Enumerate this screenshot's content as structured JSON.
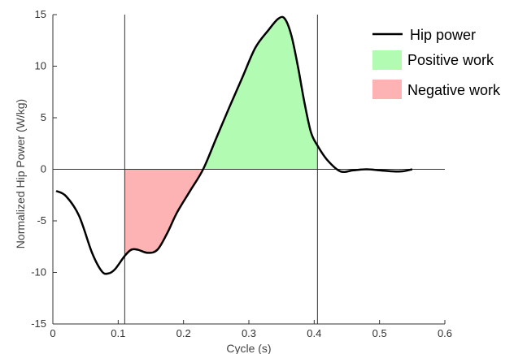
{
  "chart_data": {
    "type": "line",
    "xlabel": "Cycle (s)",
    "ylabel": "Normalized Hip Power (W/kg)",
    "xlim": [
      0,
      0.6
    ],
    "ylim": [
      -15,
      15
    ],
    "xticks": [
      "0",
      "0.1",
      "0.2",
      "0.3",
      "0.4",
      "0.5",
      "0.6"
    ],
    "yticks": [
      "-15",
      "-10",
      "-5",
      "0",
      "5",
      "10",
      "15"
    ],
    "vertical_lines_x": [
      0.11,
      0.405
    ],
    "grid": false,
    "legend_position": "top-right",
    "series": [
      {
        "name": "Hip power",
        "color": "#000000",
        "x": [
          0.005,
          0.02,
          0.04,
          0.06,
          0.075,
          0.085,
          0.095,
          0.11,
          0.12,
          0.13,
          0.145,
          0.16,
          0.175,
          0.19,
          0.21,
          0.23,
          0.25,
          0.27,
          0.29,
          0.31,
          0.33,
          0.345,
          0.355,
          0.365,
          0.375,
          0.385,
          0.395,
          0.405,
          0.42,
          0.44,
          0.46,
          0.48,
          0.5,
          0.52,
          0.535,
          0.55
        ],
        "y": [
          -2.1,
          -2.6,
          -4.5,
          -8.1,
          -9.9,
          -10.1,
          -9.7,
          -8.4,
          -7.8,
          -7.8,
          -8.1,
          -7.8,
          -6.2,
          -4.2,
          -2.1,
          0.0,
          3.0,
          6.0,
          8.9,
          11.8,
          13.5,
          14.6,
          14.6,
          13.0,
          10.0,
          6.5,
          3.6,
          2.3,
          0.9,
          -0.2,
          -0.1,
          0.0,
          -0.1,
          -0.2,
          -0.2,
          0.0
        ]
      }
    ],
    "shaded_regions": [
      {
        "name": "Positive work",
        "color": "#b2fbb2",
        "x_range": [
          0.23,
          0.405
        ]
      },
      {
        "name": "Negative work",
        "color": "#fdb3b3",
        "x_range": [
          0.11,
          0.23
        ]
      }
    ]
  },
  "legend": {
    "items": [
      {
        "label": "Hip power",
        "kind": "line",
        "color": "#000000"
      },
      {
        "label": "Positive work",
        "kind": "patch",
        "color": "#b2fbb2"
      },
      {
        "label": "Negative work",
        "kind": "patch",
        "color": "#fdb3b3"
      }
    ]
  }
}
